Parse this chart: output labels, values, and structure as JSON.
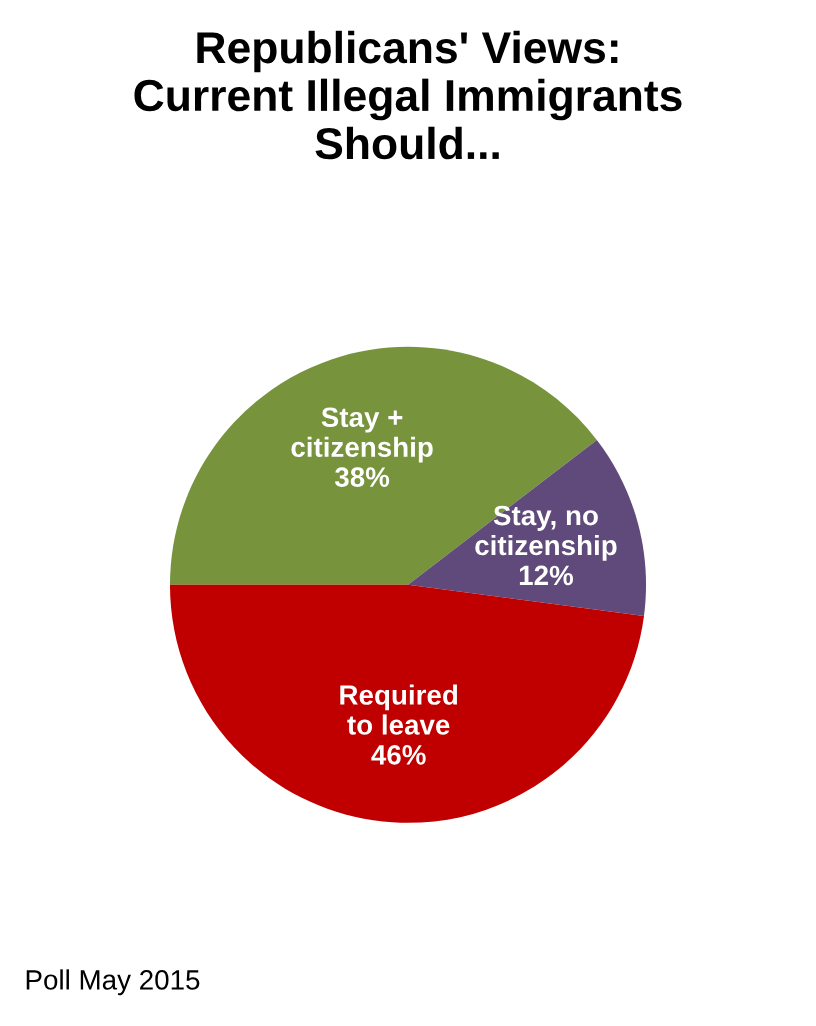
{
  "chart_data": {
    "type": "pie",
    "title": "Republicans' Views:\nCurrent Illegal Immigrants\nShould...",
    "categories": [
      "Stay +\ncitizenship",
      "Stay, no\ncitizenship",
      "Required\nto leave"
    ],
    "values": [
      38,
      12,
      46
    ],
    "value_labels": [
      "38%",
      "12%",
      "46%"
    ],
    "colors": [
      "#77933c",
      "#604a7b",
      "#c00000"
    ],
    "legend": false,
    "annotations": [
      "Poll May 2015"
    ]
  }
}
